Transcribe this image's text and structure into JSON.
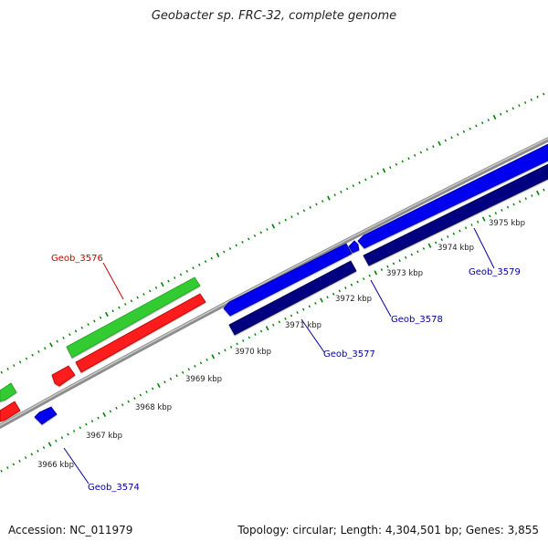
{
  "title": "Geobacter sp. FRC-32, complete genome",
  "footer": {
    "accession": "Accession: NC_011979",
    "summary": "Topology: circular; Length: 4,304,501 bp; Genes: 3,855"
  },
  "colors": {
    "forward_cds": "#33cc33",
    "forward_gene": "#ff0000",
    "reverse_cds": "#0000ff",
    "reverse_gene": "#000080",
    "backbone": "#999999",
    "ticks": "#008000",
    "label_forward": "#cc0000",
    "label_reverse": "#000099"
  },
  "scale": {
    "unit": "kbp",
    "major_ticks": [
      {
        "label": "3966 kbp"
      },
      {
        "label": "3967 kbp"
      },
      {
        "label": "3968 kbp"
      },
      {
        "label": "3969 kbp"
      },
      {
        "label": "3970 kbp"
      },
      {
        "label": "3971 kbp"
      },
      {
        "label": "3972 kbp"
      },
      {
        "label": "3973 kbp"
      },
      {
        "label": "3974 kbp"
      },
      {
        "label": "3975 kbp"
      }
    ]
  },
  "genes": [
    {
      "name": "Geob_3574",
      "strand": "reverse"
    },
    {
      "name": "Geob_3576",
      "strand": "forward"
    },
    {
      "name": "Geob_3577",
      "strand": "reverse"
    },
    {
      "name": "Geob_3578",
      "strand": "reverse"
    },
    {
      "name": "Geob_3579",
      "strand": "reverse"
    }
  ]
}
